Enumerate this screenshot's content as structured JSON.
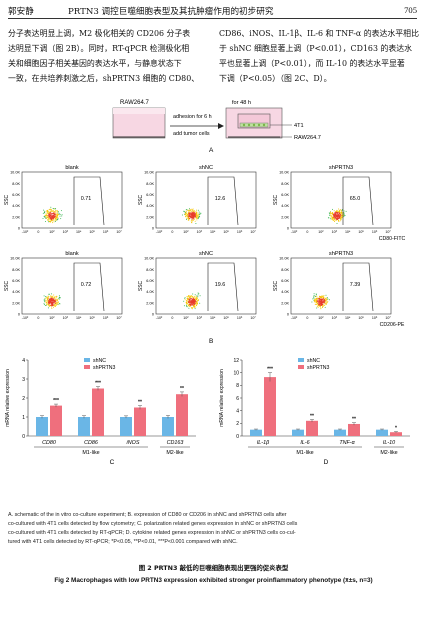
{
  "header": {
    "authors": "郭安静",
    "running_title": "PRTN3 调控巨噬细胞表型及其抗肿瘤作用的初步研究",
    "page_number": "705"
  },
  "body": {
    "left_lines": [
      "分子表达明显上调，M2 极化相关的 CD206 分子表",
      "达明显下调（图 2B）。同时，RT-qPCR 检测极化相",
      "关和细胞因子相关基因的表达水平，与静息状态下",
      "一致，在共培养刺激之后，shPRTN3 细胞的 CD80、"
    ],
    "right_lines": [
      "CD86、iNOS、IL-1β、IL-6 和 TNF-α 的表达水平相比",
      "于 shNC 细胞显著上调（P<0.01），CD163 的表达水",
      "平也显著上调（P<0.01），而 IL-10 的表达水平显著",
      "下调（P<0.05）（图 2C、D）。"
    ]
  },
  "schematic": {
    "cell_line": "RAW264.7",
    "arrow_label_1": "adhesion for 6 h",
    "arrow_label_2": "add tumor cells",
    "incubation": "for 48 h",
    "insert_label": "4T1",
    "bottom_label": "RAW264.7",
    "panel": "A"
  },
  "flow": {
    "top_row": {
      "titles": [
        "blank",
        "shNC",
        "shPRTN3"
      ],
      "percents": [
        "0.71",
        "12.6",
        "65.0"
      ],
      "xlabel": "CD80-FITC",
      "ylabel": "SSC"
    },
    "bottom_row": {
      "titles": [
        "blank",
        "shNC",
        "shPRTN3"
      ],
      "percents": [
        "0.72",
        "19.6",
        "7.39"
      ],
      "xlabel": "CD206-PE",
      "ylabel": "SSC"
    },
    "y_ticks": [
      "10.0K",
      "8.0K",
      "6.0K",
      "4.0K",
      "2.0K",
      "0"
    ],
    "x_ticks": [
      "-10²",
      "0",
      "10²",
      "10³",
      "10⁴",
      "10⁵",
      "10⁶",
      "10⁷"
    ],
    "panel": "B"
  },
  "chart_data": [
    {
      "type": "bar",
      "panel": "C",
      "ylabel": "mRNA relative expression",
      "ylim": [
        0,
        4
      ],
      "yticks": [
        0,
        1,
        2,
        3,
        4
      ],
      "categories": [
        "CD80",
        "CD86",
        "iNOS",
        "CD163"
      ],
      "groups": [
        {
          "label": "M1-like",
          "span": [
            "CD80",
            "iNOS"
          ]
        },
        {
          "label": "M2-like",
          "span": [
            "CD163",
            "CD163"
          ]
        }
      ],
      "series": [
        {
          "name": "shNC",
          "color": "#6ab6e6",
          "values": [
            1.0,
            1.0,
            1.0,
            1.0
          ],
          "errors": [
            0.07,
            0.07,
            0.06,
            0.08
          ]
        },
        {
          "name": "shPRTN3",
          "color": "#ef6f7d",
          "values": [
            1.6,
            2.5,
            1.5,
            2.2
          ],
          "errors": [
            0.08,
            0.1,
            0.1,
            0.12
          ]
        }
      ],
      "significance": [
        "***",
        "***",
        "**",
        "**"
      ],
      "legend_position": "top-center"
    },
    {
      "type": "bar",
      "panel": "D",
      "ylabel": "mRNA relative expression",
      "ylim": [
        0,
        12
      ],
      "yticks": [
        0,
        2,
        4,
        6,
        8,
        10,
        12
      ],
      "categories": [
        "IL-1β",
        "IL-6",
        "TNF-α",
        "IL-10"
      ],
      "groups": [
        {
          "label": "M1-like",
          "span": [
            "IL-1β",
            "TNF-α"
          ]
        },
        {
          "label": "M2-like",
          "span": [
            "IL-10",
            "IL-10"
          ]
        }
      ],
      "series": [
        {
          "name": "shNC",
          "color": "#6ab6e6",
          "values": [
            1.0,
            1.0,
            1.0,
            1.0
          ],
          "errors": [
            0.1,
            0.1,
            0.1,
            0.1
          ]
        },
        {
          "name": "shPRTN3",
          "color": "#ef6f7d",
          "values": [
            9.3,
            2.4,
            1.9,
            0.6
          ],
          "errors": [
            0.7,
            0.2,
            0.2,
            0.1
          ]
        }
      ],
      "significance": [
        "***",
        "**",
        "**",
        "*"
      ],
      "legend_position": "top-center"
    }
  ],
  "caption": {
    "lines": [
      "A. schematic of the in vitro co-culture experiment; B. expression of CD80 or CD206 in shNC and shPRTN3 cells after",
      "co-cultured with 4T1 cells detected by flow cytometry; C. polarization related genes expression in shNC or shPRTN3 cells",
      "co-cultured with 4T1 cells detected by RT-qPCR; D. cytokine related genes expression in shNC or shPRTN3 cells co-cul-",
      "tured with 4T1 cells detected by RT-qPCR; *P<0.05, **P<0.01, ***P<0.001 compared with shNC."
    ],
    "title_cn": "图 2   PRTN3 敲低的巨噬细胞表现出更强的促炎表型",
    "title_en": "Fig 2   Macrophages with low PRTN3 expression exhibited stronger proinflammatory phenotype (x̄±s, n=3)"
  }
}
